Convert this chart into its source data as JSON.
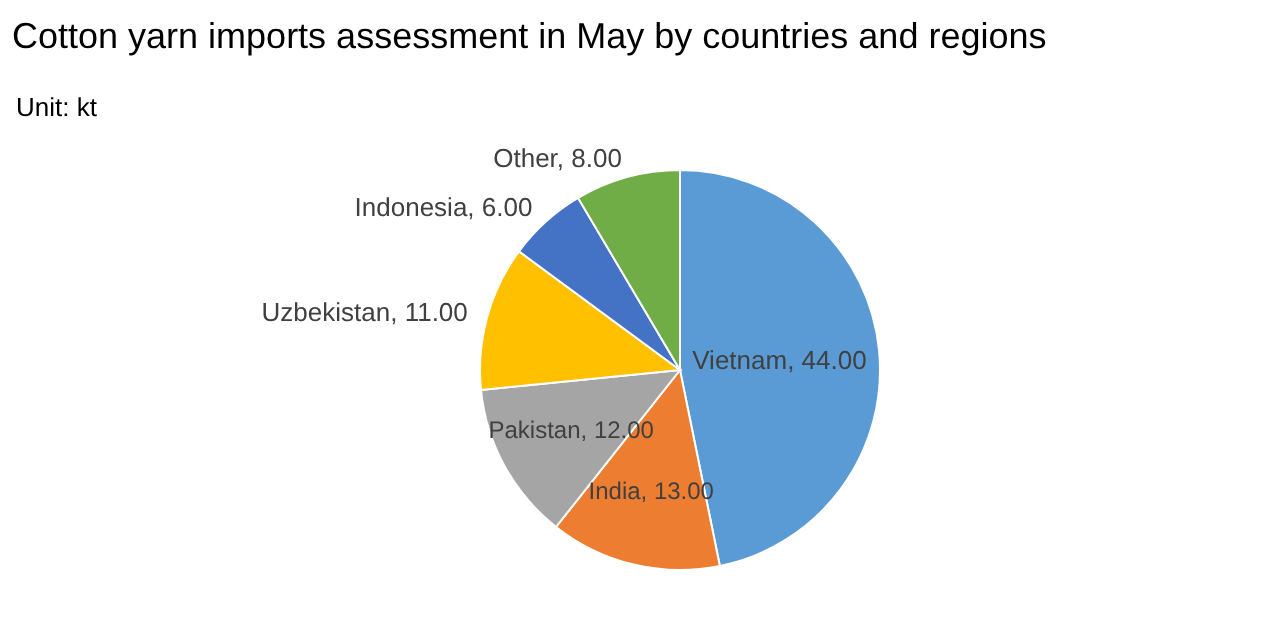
{
  "chart_data": {
    "type": "pie",
    "title": "Cotton yarn imports assessment in May by countries and regions",
    "subtitle": "Unit: kt",
    "categories": [
      "Vietnam",
      "India",
      "Pakistan",
      "Uzbekistan",
      "Indonesia",
      "Other"
    ],
    "values": [
      44,
      13,
      12,
      11,
      6,
      8
    ],
    "value_labels": [
      "44.00",
      "13.00",
      "12.00",
      "11.00",
      "6.00",
      "8.00"
    ],
    "colors": [
      "#5b9bd5",
      "#ed7d31",
      "#a5a5a5",
      "#ffc000",
      "#4472c4",
      "#70ad47"
    ],
    "legend": false
  }
}
